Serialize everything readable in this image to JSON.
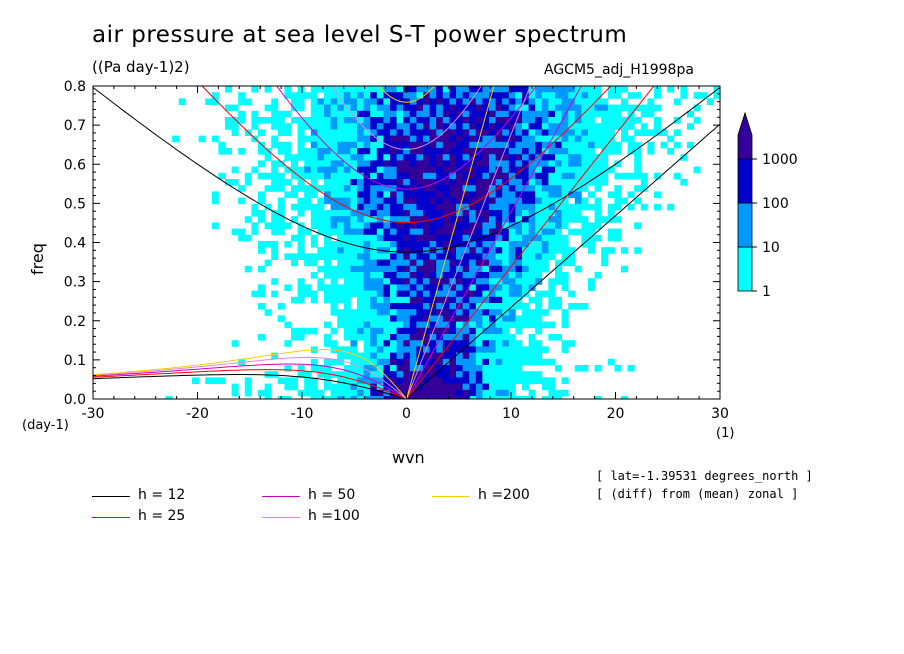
{
  "header": {
    "title": "air pressure at sea level S-T power spectrum",
    "units": "((Pa day-1)2)",
    "run_name": "AGCM5_adj_H1998pa"
  },
  "notes": [
    "[ lat=-1.39531 degrees_north ]",
    "[ (diff) from (mean) zonal ]"
  ],
  "chart_data": {
    "type": "heatmap",
    "title": "air pressure at sea level S-T power spectrum",
    "xlabel": "wvn",
    "ylabel": "freq",
    "x_unit": "(1)",
    "y_unit": "(day-1)",
    "xlim": [
      -30,
      30
    ],
    "ylim": [
      0,
      0.8
    ],
    "x_ticks": [
      -30,
      -20,
      -10,
      0,
      10,
      20,
      30
    ],
    "x_tick_labels": [
      "-30",
      "-20",
      "-10",
      "0",
      "10",
      "20",
      "30"
    ],
    "y_ticks": [
      0.0,
      0.1,
      0.2,
      0.3,
      0.4,
      0.5,
      0.6,
      0.7,
      0.8
    ],
    "y_tick_labels": [
      "0.0",
      "0.1",
      "0.2",
      "0.3",
      "0.4",
      "0.5",
      "0.6",
      "0.7",
      "0.8"
    ],
    "colorbar": {
      "levels": [
        "1",
        "10",
        "100",
        "1000"
      ],
      "colors": [
        "#00ffff",
        "#0099ff",
        "#0000cc",
        "#330099"
      ],
      "extend": "max"
    },
    "dispersion_curves": [
      {
        "label": "h = 12",
        "h": 12,
        "color": "#000000"
      },
      {
        "label": "h = 25",
        "h": 25,
        "color": "#ff0000"
      },
      {
        "label": "h = 50",
        "h": 50,
        "color": "#cc00cc"
      },
      {
        "label": "h =100",
        "h": 100,
        "color": "#dd88dd"
      },
      {
        "label": "h =200",
        "h": 200,
        "color": "#ffcc00"
      }
    ],
    "grid": false,
    "legend_position": "bottom"
  }
}
